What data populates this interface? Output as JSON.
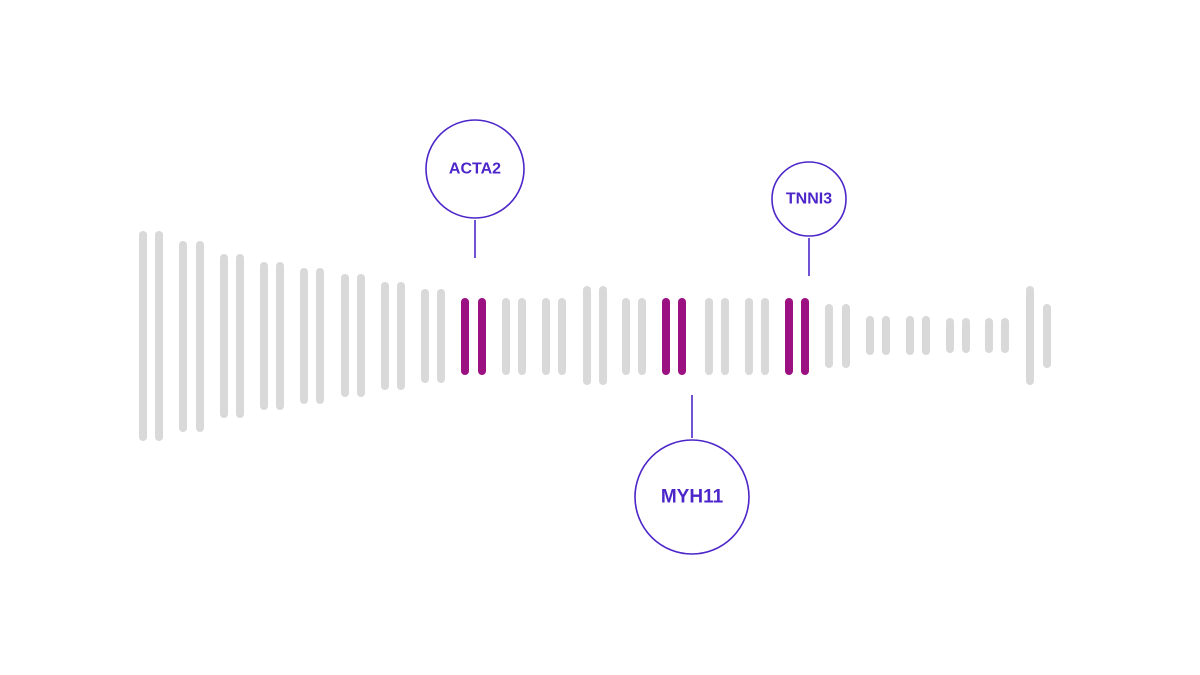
{
  "diagram": {
    "colors": {
      "background": "#ffffff",
      "bar": "#d9d9d9",
      "highlight": "#9b1182",
      "accent": "#4c26c9"
    },
    "highlighted_groups": [
      8,
      13,
      16
    ],
    "genes": [
      {
        "name": "ACTA2",
        "group": 8,
        "side": "top"
      },
      {
        "name": "MYH11",
        "group": 13,
        "side": "bottom"
      },
      {
        "name": "TNNI3",
        "group": 16,
        "side": "top"
      }
    ]
  }
}
